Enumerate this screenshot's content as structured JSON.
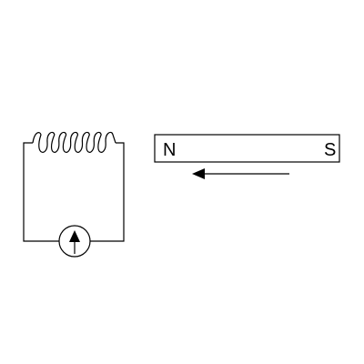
{
  "diagram": {
    "magnet": {
      "north_label": "N",
      "south_label": "S"
    },
    "coil_turns": 6,
    "motion_direction": "left",
    "meter_needle_direction": "up",
    "colors": {
      "stroke": "#000000",
      "background": "#ffffff"
    },
    "icons": {
      "meter": "galvanometer-icon",
      "coil": "coil-icon",
      "arrow": "arrow-left-icon"
    }
  }
}
